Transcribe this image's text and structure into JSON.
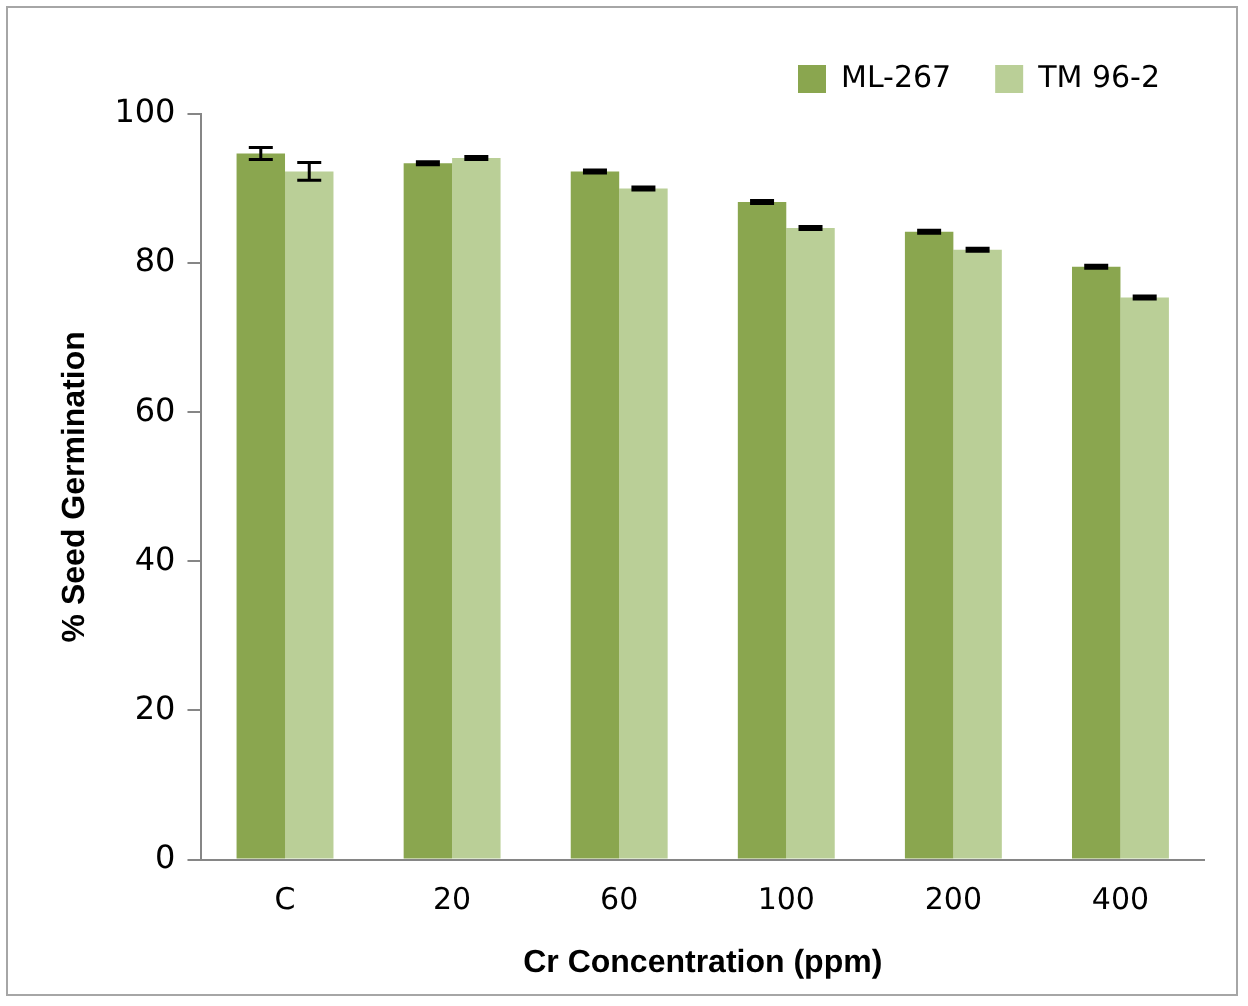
{
  "chart_data": {
    "type": "bar",
    "xlabel": "Cr Concentration (ppm)",
    "ylabel": "% Seed Germination",
    "categories": [
      "C",
      "20",
      "60",
      "100",
      "200",
      "400"
    ],
    "series": [
      {
        "name": "ML-267",
        "color": "#8aa64f",
        "values": [
          94.7,
          93.4,
          92.3,
          88.2,
          84.2,
          79.5
        ],
        "errors": [
          0.8,
          0.2,
          0.2,
          0.2,
          0.2,
          0.2
        ]
      },
      {
        "name": "TM 96-2",
        "color": "#bacf97",
        "values": [
          92.3,
          94.1,
          90.0,
          84.7,
          81.8,
          75.4
        ],
        "errors": [
          1.2,
          0.2,
          0.2,
          0.2,
          0.2,
          0.2
        ]
      }
    ],
    "ylim": [
      0,
      100
    ],
    "yticks": [
      0,
      20,
      40,
      60,
      80,
      100
    ],
    "grid": false,
    "legend": "top right"
  }
}
